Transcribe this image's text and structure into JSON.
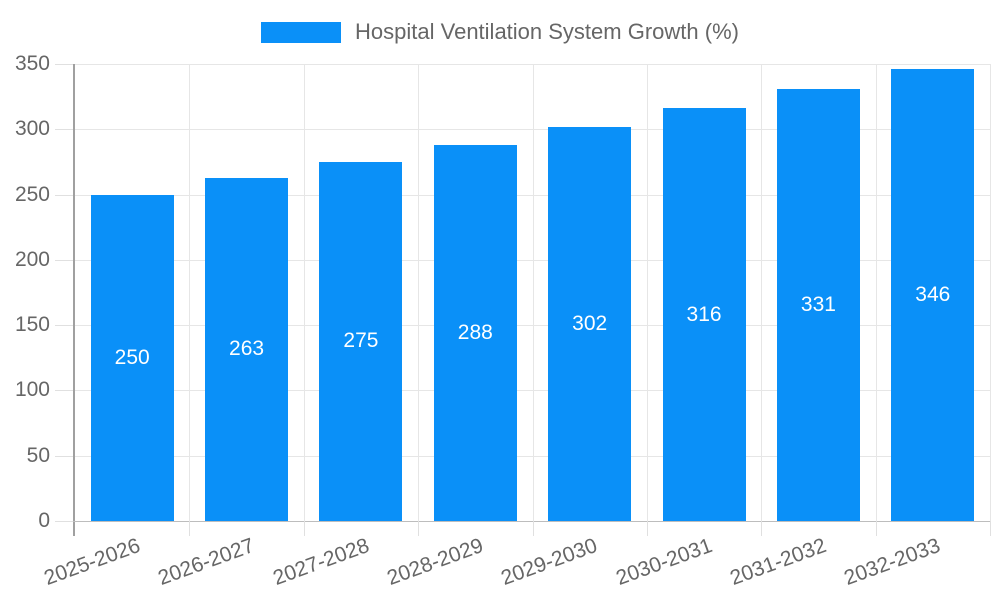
{
  "chart_data": {
    "type": "bar",
    "title": "",
    "series_label": "Hospital Ventilation System Growth (%)",
    "categories": [
      "2025-2026",
      "2026-2027",
      "2027-2028",
      "2028-2029",
      "2029-2030",
      "2030-2031",
      "2031-2032",
      "2032-2033"
    ],
    "values": [
      250,
      263,
      275,
      288,
      302,
      316,
      331,
      346
    ],
    "value_labels_position": "inside-center",
    "xlabel": "",
    "ylabel": "",
    "ylim": [
      0,
      350
    ],
    "ytick_step": 50,
    "y_tick_labels": [
      "0",
      "50",
      "100",
      "150",
      "200",
      "250",
      "300",
      "350"
    ],
    "grid": "on",
    "legend_position": "top-center",
    "x_label_rotation_deg": -20,
    "colors": {
      "bar": "#0A90F8",
      "grid": "#E6E6E6",
      "tick": "#E0E0E0",
      "y_axis": "#A0A0A0",
      "x_axis": "#BDBDBD",
      "label_text": "#666666",
      "value_label_text": "#FFFFFF"
    }
  }
}
